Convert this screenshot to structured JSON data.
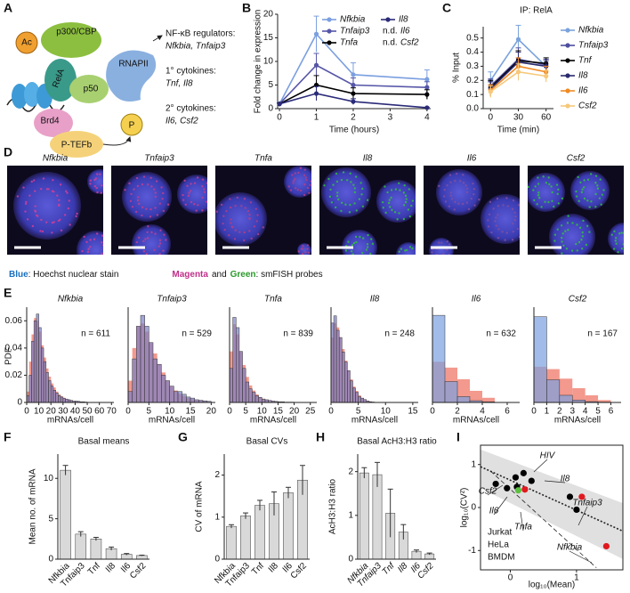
{
  "panel_letters": [
    "A",
    "B",
    "C",
    "D",
    "E",
    "F",
    "G",
    "H",
    "I"
  ],
  "diagram": {
    "proteins": [
      "Ac",
      "p300/CBP",
      "RelA",
      "p50",
      "RNAPII",
      "Brd4",
      "P-TEFb",
      "P"
    ],
    "regulators_heading": "NF-κB regulators:",
    "regulators_genes": "Nfkbia, Tnfaip3",
    "primary_heading": "1° cytokines:",
    "primary_genes": "Tnf, Il8",
    "secondary_heading": "2° cytokines:",
    "secondary_genes": "Il6, Csf2"
  },
  "images": {
    "items": [
      {
        "title": "Nfkbia",
        "probe_color": "#d0409a"
      },
      {
        "title": "Tnfaip3",
        "probe_color": "#c04090"
      },
      {
        "title": "Tnfa",
        "probe_color": "#b04088"
      },
      {
        "title": "Il8",
        "probe_color": "#30c040"
      },
      {
        "title": "Il6",
        "probe_color": "#8050a0"
      },
      {
        "title": "Csf2",
        "probe_color": "#30c040"
      }
    ],
    "caption_blue": "Blue",
    "caption_blue_rest": ": Hoechst nuclear stain",
    "caption_magenta": "Magenta",
    "caption_and": "and",
    "caption_green": "Green",
    "caption_green_rest": ": smFISH probes"
  },
  "chart_data": [
    {
      "type": "line",
      "ylabel": "Fold change in expression",
      "xlabel": "Time (hours)",
      "x": [
        0,
        1,
        2,
        4
      ],
      "xlim": [
        -0.05,
        4.1
      ],
      "xticks": [
        0,
        1,
        2,
        3,
        4
      ],
      "ylim": [
        0,
        20
      ],
      "yticks": [
        0,
        5,
        10,
        15,
        20
      ],
      "series": [
        {
          "name": "Nfkbia",
          "color": "#7b9fe0",
          "values": [
            1,
            15.8,
            7.2,
            6.2
          ],
          "errors": [
            0.3,
            3.8,
            2.5,
            2.0
          ]
        },
        {
          "name": "Tnfaip3",
          "color": "#5656a8",
          "values": [
            1,
            9.2,
            5.0,
            4.5
          ],
          "errors": [
            0.2,
            2.5,
            1.5,
            1.2
          ]
        },
        {
          "name": "Tnfa",
          "color": "#000000",
          "values": [
            1,
            5.0,
            3.2,
            3.0
          ],
          "errors": [
            0.2,
            2.0,
            1.2,
            1.0
          ]
        },
        {
          "name": "Il8",
          "color": "#2b2b7a",
          "values": [
            1,
            3.2,
            1.5,
            0.2
          ],
          "errors": [
            0.2,
            1.5,
            0.6,
            0.1
          ]
        }
      ],
      "nd_label": "n.d.",
      "nd_series": [
        "Il6",
        "Csf2"
      ]
    },
    {
      "type": "line",
      "title": "IP: RelA",
      "ylabel": "% Input",
      "xlabel": "Time (min)",
      "x": [
        0,
        30,
        60
      ],
      "xlim": [
        -8,
        68
      ],
      "xticks": [
        0,
        30,
        60
      ],
      "ylim": [
        0,
        0.58
      ],
      "yticks": [
        {
          "value": 0,
          "label": "0.0"
        },
        0.1,
        0.2,
        0.3,
        0.4,
        0.5
      ],
      "series": [
        {
          "name": "Nfkbia",
          "color": "#7aa3dc",
          "values": [
            0.2,
            0.49,
            0.3
          ],
          "errors": [
            0.06,
            0.1,
            0.05
          ]
        },
        {
          "name": "Tnfaip3",
          "color": "#4e4ea0",
          "values": [
            0.16,
            0.35,
            0.31
          ],
          "errors": [
            0.05,
            0.08,
            0.04
          ]
        },
        {
          "name": "Tnf",
          "color": "#000000",
          "values": [
            0.15,
            0.34,
            0.32
          ],
          "errors": [
            0.05,
            0.07,
            0.04
          ]
        },
        {
          "name": "Il8",
          "color": "#2a2a6e",
          "values": [
            0.14,
            0.33,
            0.3
          ],
          "errors": [
            0.05,
            0.07,
            0.04
          ]
        },
        {
          "name": "Il6",
          "color": "#f08a24",
          "values": [
            0.13,
            0.3,
            0.26
          ],
          "errors": [
            0.04,
            0.06,
            0.04
          ]
        },
        {
          "name": "Csf2",
          "color": "#f7c87a",
          "values": [
            0.12,
            0.26,
            0.23
          ],
          "errors": [
            0.04,
            0.06,
            0.04
          ]
        }
      ]
    },
    {
      "type": "histogram",
      "title": "Nfkbia",
      "annotation": "n = 611",
      "xlabel": "mRNAs/cell",
      "ylabel": "PDF",
      "bins": [
        0,
        2,
        4,
        6,
        8,
        10,
        12,
        14,
        16,
        18,
        20,
        22,
        24,
        26,
        28,
        30,
        32,
        34,
        36,
        38,
        40,
        42,
        44,
        46,
        48,
        50
      ],
      "values": [
        0.005,
        0.02,
        0.045,
        0.06,
        0.065,
        0.055,
        0.04,
        0.03,
        0.022,
        0.016,
        0.012,
        0.009,
        0.007,
        0.005,
        0.004,
        0.003,
        0.0025,
        0.002,
        0.0015,
        0.001,
        0.001,
        0.0008,
        0.0005,
        0.0005,
        0.0003
      ],
      "fit": [
        0.008,
        0.03,
        0.05,
        0.062,
        0.06,
        0.052,
        0.042,
        0.033,
        0.025,
        0.019,
        0.014,
        0.011,
        0.008,
        0.006,
        0.0045,
        0.0035,
        0.0025,
        0.002,
        0.0015,
        0.001,
        0.0008,
        0.0006,
        0.0004,
        0.0003,
        0.0002
      ],
      "xlim": [
        0,
        72
      ],
      "xticks": [
        0,
        10,
        20,
        30,
        40,
        50,
        60,
        70
      ],
      "ylim": [
        0,
        0.07
      ],
      "yticks": [
        0,
        0.02,
        0.04,
        0.06
      ],
      "bar_color": "#7b7fc4",
      "fit_color": "#f08070"
    },
    {
      "type": "histogram",
      "title": "Tnfaip3",
      "annotation": "n = 529",
      "xlabel": "mRNAs/cell",
      "bins": [
        0,
        1,
        2,
        3,
        4,
        5,
        6,
        7,
        8,
        9,
        10,
        11,
        12,
        13,
        14,
        15,
        16,
        17,
        18,
        19,
        20
      ],
      "values": [
        0.02,
        0.08,
        0.14,
        0.16,
        0.14,
        0.11,
        0.08,
        0.07,
        0.05,
        0.04,
        0.03,
        0.02,
        0.02,
        0.015,
        0.01,
        0.008,
        0.005,
        0.004,
        0.003,
        0.002
      ],
      "fit": [
        0.04,
        0.1,
        0.14,
        0.145,
        0.13,
        0.11,
        0.09,
        0.07,
        0.055,
        0.04,
        0.03,
        0.022,
        0.016,
        0.012,
        0.008,
        0.006,
        0.004,
        0.003,
        0.002,
        0.001
      ],
      "xlim": [
        0,
        21
      ],
      "xticks": [
        0,
        5,
        10,
        15,
        20
      ],
      "ylim": [
        0,
        0.175
      ],
      "bar_color": "#7b7fc4",
      "fit_color": "#f08070"
    },
    {
      "type": "histogram",
      "title": "Tnfa",
      "annotation": "n = 839",
      "xlabel": "mRNAs/cell",
      "bins": [
        0,
        1,
        2,
        3,
        4,
        5,
        6,
        7,
        8,
        9,
        10,
        11,
        12,
        13,
        14,
        15,
        16,
        17,
        18,
        19,
        20
      ],
      "values": [
        0.1,
        0.25,
        0.22,
        0.15,
        0.1,
        0.06,
        0.04,
        0.03,
        0.02,
        0.015,
        0.01,
        0.008,
        0.006,
        0.004,
        0.003,
        0.002,
        0.002,
        0.001,
        0.001,
        0.001
      ],
      "fit": [
        0.15,
        0.23,
        0.2,
        0.15,
        0.11,
        0.075,
        0.05,
        0.035,
        0.024,
        0.016,
        0.011,
        0.008,
        0.005,
        0.004,
        0.003,
        0.002,
        0.001,
        0.001,
        0.0005,
        0.0003
      ],
      "xlim": [
        0,
        27
      ],
      "xticks": [
        0,
        5,
        10,
        15,
        20,
        25
      ],
      "ylim": [
        0,
        0.28
      ],
      "bar_color": "#7b7fc4",
      "fit_color": "#f08070"
    },
    {
      "type": "histogram",
      "title": "Il8",
      "annotation": "n = 248",
      "xlabel": "mRNAs/cell",
      "bins": [
        0,
        0.5,
        1,
        1.5,
        2,
        2.5,
        3,
        3.5,
        4,
        4.5,
        5,
        5.5,
        6,
        6.5,
        7,
        7.5,
        8
      ],
      "values": [
        0.55,
        0.6,
        0.5,
        0.45,
        0.35,
        0.28,
        0.22,
        0.15,
        0.1,
        0.07,
        0.04,
        0.03,
        0.02,
        0.01,
        0.005,
        0.003
      ],
      "fit": [
        0.45,
        0.55,
        0.52,
        0.45,
        0.37,
        0.29,
        0.22,
        0.16,
        0.11,
        0.08,
        0.05,
        0.03,
        0.02,
        0.012,
        0.007,
        0.004
      ],
      "xlim": [
        0,
        16
      ],
      "xticks": [
        0,
        5,
        10,
        15
      ],
      "ylim": [
        0,
        0.66
      ],
      "bar_color": "#7b7fc4",
      "fit_color": "#f08070"
    },
    {
      "type": "histogram",
      "title": "Il6",
      "annotation": "n = 632",
      "xlabel": "mRNAs/cell",
      "bins": [
        0,
        1,
        2,
        3,
        4,
        5
      ],
      "values": [
        0.75,
        0.18,
        0.05,
        0.015,
        0.005
      ],
      "fit": [
        0.35,
        0.3,
        0.2,
        0.1,
        0.04
      ],
      "xlim": [
        0,
        7
      ],
      "xticks": [
        0,
        2,
        4,
        6
      ],
      "ylim": [
        0,
        0.82
      ],
      "bar_color": "#7b9fe0",
      "fit_color": "#f08070"
    },
    {
      "type": "histogram",
      "title": "Csf2",
      "annotation": "n = 167",
      "xlabel": "mRNAs/cell",
      "bins": [
        0,
        1,
        2,
        3,
        4,
        5,
        6
      ],
      "values": [
        0.72,
        0.19,
        0.06,
        0.02,
        0.007,
        0.003
      ],
      "fit": [
        0.3,
        0.28,
        0.2,
        0.12,
        0.06,
        0.02
      ],
      "xlim": [
        0,
        6.8
      ],
      "xticks": [
        0,
        1,
        2,
        3,
        4,
        5,
        6
      ],
      "ylim": [
        0,
        0.8
      ],
      "bar_color": "#7b9fe0",
      "fit_color": "#f08070"
    },
    {
      "type": "bar",
      "title": "Basal means",
      "ylabel": "Mean no. of mRNA",
      "categories": [
        "Nfkbia",
        "Tnfaip3",
        "Tnf",
        "Il8",
        "Il6",
        "Csf2"
      ],
      "italic_categories": false,
      "values": [
        11,
        3.1,
        2.5,
        1.3,
        0.6,
        0.45
      ],
      "errors": [
        0.6,
        0.3,
        0.2,
        0.2,
        0.1,
        0.05
      ],
      "ylim": [
        0,
        13
      ],
      "yticks": [
        0,
        5,
        10
      ],
      "color": "#d9d9d9"
    },
    {
      "type": "bar",
      "title": "Basal CVs",
      "ylabel": "CV of mRNA",
      "categories": [
        "Nfkbia",
        "Tnfaip3",
        "Tnf",
        "Il8",
        "Il6",
        "Csf2"
      ],
      "italic_categories": false,
      "values": [
        0.78,
        1.03,
        1.28,
        1.32,
        1.58,
        1.88
      ],
      "errors": [
        0.04,
        0.07,
        0.12,
        0.28,
        0.13,
        0.35
      ],
      "ylim": [
        0,
        2.5
      ],
      "yticks": [
        0,
        1,
        2
      ],
      "color": "#d9d9d9"
    },
    {
      "type": "bar",
      "title": "Basal AcH3:H3 ratio",
      "ylabel": "AcH3:H3 ratio",
      "categories": [
        "Nfkbia",
        "Tnfaip3",
        "Tnf",
        "Il8",
        "Il6",
        "Csf2"
      ],
      "italic_categories": true,
      "values": [
        1.97,
        1.93,
        1.05,
        0.62,
        0.18,
        0.12
      ],
      "errors": [
        0.12,
        0.28,
        0.55,
        0.17,
        0.03,
        0.02
      ],
      "ylim": [
        0,
        2.4
      ],
      "yticks": [
        0,
        1,
        2
      ],
      "color": "#d9d9d9"
    },
    {
      "type": "scatter",
      "xlabel": "log₁₀(Mean)",
      "ylabel": "log₁₀(CV²)",
      "xlim": [
        -0.45,
        1.7
      ],
      "xticks": [
        0,
        1
      ],
      "ylim": [
        -1.45,
        1.45
      ],
      "yticks": [
        -1,
        0,
        1
      ],
      "series": [
        {
          "name": "Jurkat",
          "color": "#000000",
          "x": [
            -0.22,
            -0.05,
            0.08,
            0.2,
            0.32,
            0.1,
            0.9,
            1.0
          ],
          "values": [
            0.55,
            0.45,
            0.7,
            0.8,
            0.62,
            0.48,
            0.25,
            -0.05
          ]
        },
        {
          "name": "HeLa",
          "color": "#e0191e",
          "x": [
            0.22,
            1.08,
            1.45
          ],
          "values": [
            0.42,
            0.25,
            -0.9
          ]
        },
        {
          "name": "BMDM",
          "color": "#5cc040",
          "x": [
            0.12
          ],
          "values": [
            0.4
          ]
        }
      ],
      "band": {
        "x": [
          -0.45,
          1.7
        ],
        "lower": [
          0.45,
          -1.2
        ],
        "upper": [
          1.35,
          0.1
        ]
      },
      "trend": {
        "x": [
          -0.45,
          1.7
        ],
        "y": [
          0.95,
          -0.55
        ]
      },
      "poisson": {
        "x": [
          -0.3,
          1.3
        ],
        "y": [
          0.85,
          -1.4
        ]
      },
      "annotations": [
        "HIV",
        "Il8",
        "Csf2",
        "Il6",
        "Tnfa",
        "Tnfaip3",
        "Nfkbia"
      ]
    }
  ]
}
